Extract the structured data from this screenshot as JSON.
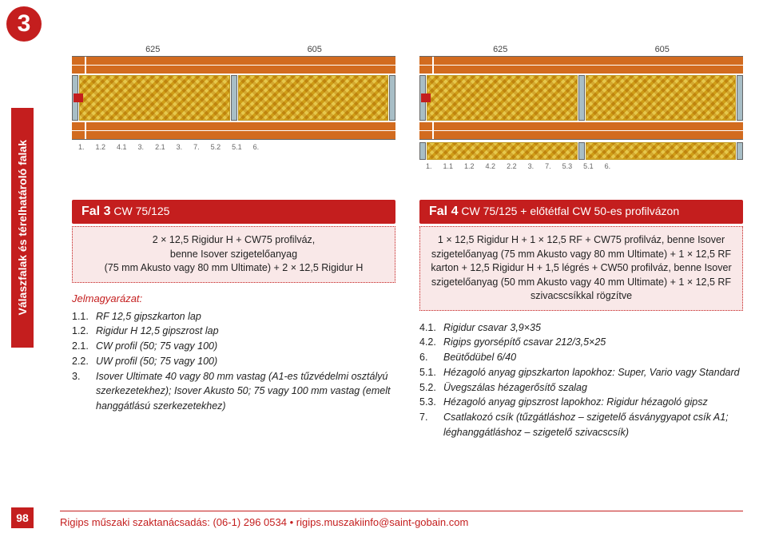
{
  "badge": "3",
  "sidebar": "Válaszfalak és térelhatároló falak",
  "page": "98",
  "footer": {
    "text1": "Rigips műszaki szaktanácsadás: (06-1) 296 0534 ",
    "text2": "rigips.muszakiinfo@saint-gobain.com"
  },
  "left": {
    "dims": [
      "625",
      "605"
    ],
    "markers": [
      "1.",
      "1.2",
      "4.1",
      "3.",
      "2.1",
      "3.",
      "7.",
      "5.2",
      "5.1",
      "6."
    ],
    "header_b": "Fal 3",
    "header_r": " CW 75/125",
    "sub": "2 × 12,5 Rigidur H + CW75 profilváz,\nbenne Isover szigetelőanyag\n(75 mm Akusto vagy 80 mm Ultimate) + 2 × 12,5 Rigidur H",
    "legend_title": "Jelmagyarázat:",
    "legend": [
      {
        "n": "1.1.",
        "t": "RF 12,5 gipszkarton lap",
        "i": true
      },
      {
        "n": "1.2.",
        "t": "Rigidur H 12,5 gipszrost lap",
        "i": true
      },
      {
        "n": "2.1.",
        "t": "CW profil (50; 75 vagy 100)",
        "i": true
      },
      {
        "n": "2.2.",
        "t": "UW profil (50; 75 vagy 100)",
        "i": true
      },
      {
        "n": "3.",
        "t": "Isover Ultimate 40 vagy 80 mm vastag (A1-es tűzvédelmi osztályú szerkezetekhez); Isover Akusto 50; 75 vagy 100 mm vastag (emelt hanggátlású szerkezetekhez)",
        "i": true
      }
    ]
  },
  "right": {
    "dims": [
      "625",
      "605"
    ],
    "markers": [
      "1.",
      "1.1",
      "1.2",
      "4.2",
      "2.2",
      "3.",
      "7.",
      "5.3",
      "5.1",
      "6."
    ],
    "header_b": "Fal 4",
    "header_r": " CW 75/125 + előtétfal CW 50-es profilvázon",
    "sub": "1 × 12,5 Rigidur H + 1 × 12,5 RF + CW75 profilváz, benne Isover szigetelőanyag (75 mm Akusto vagy 80 mm Ultimate) + 1 × 12,5 RF karton + 12,5 Rigidur H + 1,5 légrés + CW50 profilváz, benne Isover szigetelőanyag (50 mm Akusto vagy 40 mm Ultimate) + 1 × 12,5 RF szivacscsíkkal rögzítve",
    "legend": [
      {
        "n": "4.1.",
        "t": "Rigidur csavar 3,9×35",
        "i": true
      },
      {
        "n": "4.2.",
        "t": "Rigips gyorsépítő csavar 212/3,5×25",
        "i": true
      },
      {
        "n": "6.",
        "t": "Beütődübel 6/40",
        "i": true
      },
      {
        "n": "5.1.",
        "t": "Hézagoló anyag gipszkarton lapokhoz: Super, Vario vagy Standard",
        "i": true
      },
      {
        "n": "5.2.",
        "t": "Üvegszálas hézagerősítő szalag",
        "i": true
      },
      {
        "n": "5.3.",
        "t": "Hézagoló anyag gipszrost lapokhoz: Rigidur hézagoló gipsz",
        "i": true
      },
      {
        "n": "7.",
        "t": "Csatlakozó csík (tűzgátláshoz – szigetelő ásványgyapot csík A1; léghanggátláshoz – szigetelő szivacscsík)",
        "i": true
      }
    ]
  }
}
